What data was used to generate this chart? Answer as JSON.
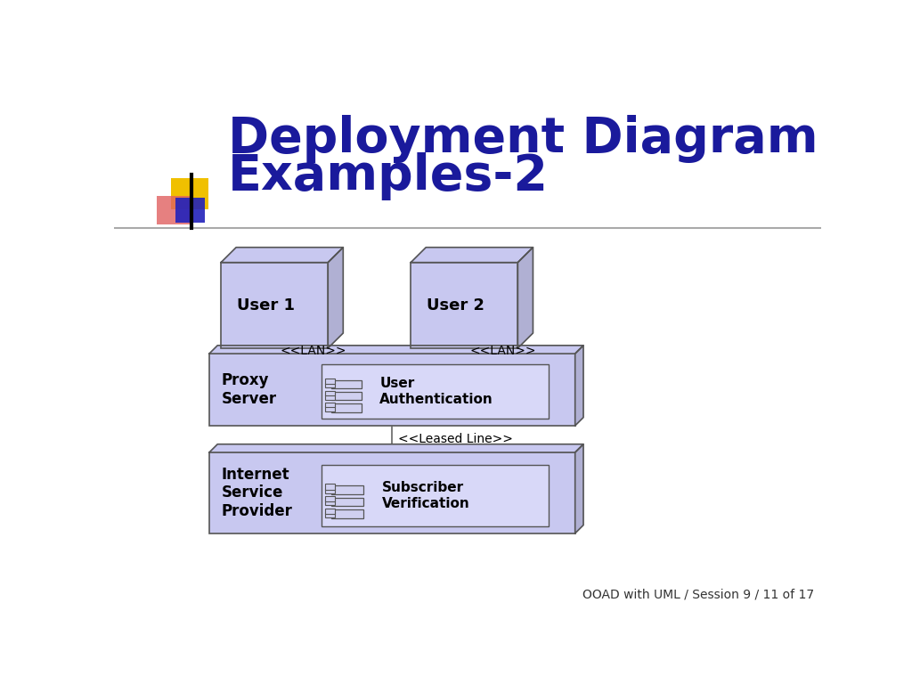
{
  "title_line1": "Deployment Diagram",
  "title_line2": "Examples-2",
  "title_color": "#1a1a9c",
  "title_fontsize": 40,
  "bg_color": "#ffffff",
  "footnote": "OOAD with UML / Session 9 / 11 of 17",
  "footnote_fontsize": 10,
  "node_fill": "#c8c8f0",
  "node_edge": "#555555",
  "box_fill": "#c8c8f0",
  "box_edge": "#555555",
  "inner_box_fill": "#d8d8f8",
  "inner_box_edge": "#555555",
  "component_fill": "#d0d0f0",
  "component_edge": "#555555",
  "label_color": "#000000",
  "lan_label": "<<LAN>>",
  "leased_label": "<<Leased Line>>",
  "user1_label": "User 1",
  "user2_label": "User 2",
  "proxy_label": "Proxy\nServer",
  "isp_label": "Internet\nService\nProvider",
  "user_auth_label": "User\nAuthentication",
  "subscriber_label": "Subscriber\nVerification",
  "dec_yellow": "#f0c000",
  "dec_red": "#e06060",
  "dec_blue": "#2222bb",
  "sep_color": "#aaaaaa",
  "line_color": "#666666"
}
